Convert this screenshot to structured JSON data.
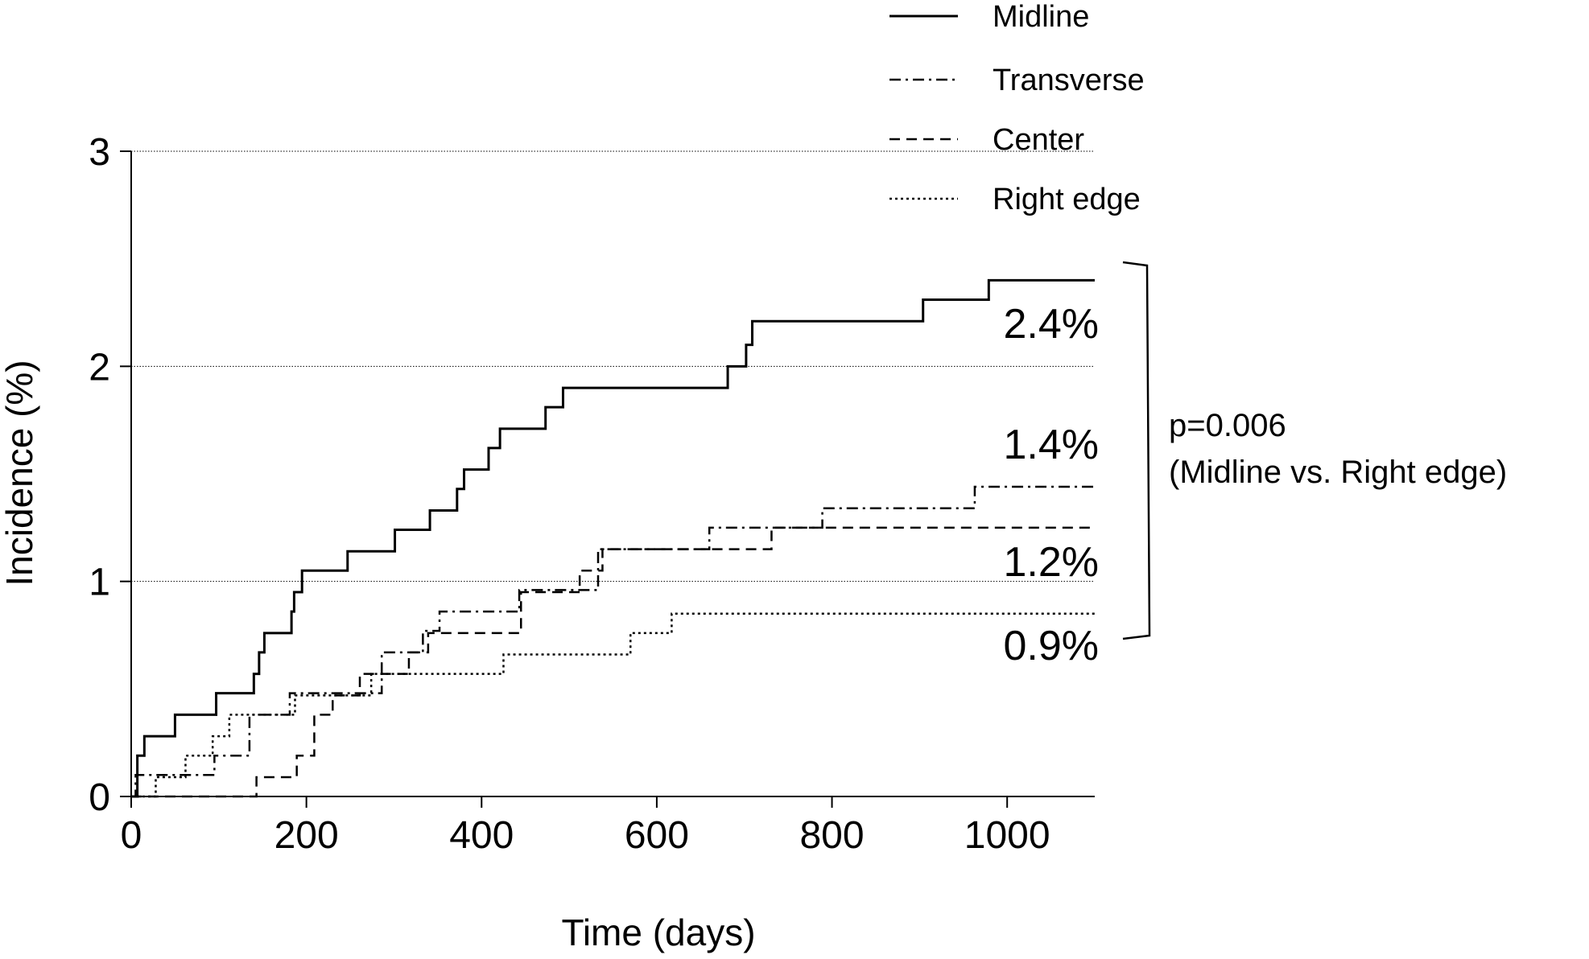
{
  "chart_data": {
    "type": "line",
    "step": true,
    "xlabel": "Time (days)",
    "ylabel": "Incidence (%)",
    "xlim": [
      0,
      1100
    ],
    "ylim": [
      0,
      3
    ],
    "xticks": [
      "0",
      "200",
      "400",
      "600",
      "800",
      "1000"
    ],
    "yticks": [
      "0",
      "1",
      "2",
      "3"
    ],
    "grid": "horizontal dotted at y = 1, 2, 3",
    "legend_position": "top-right",
    "series": [
      {
        "name": "Midline",
        "line_style": "solid",
        "end_label": "2.4%",
        "x": [
          0,
          7,
          15,
          50,
          97,
          140,
          146,
          152,
          168,
          183,
          186,
          195,
          247,
          301,
          341,
          372,
          380,
          408,
          421,
          473,
          493,
          681,
          702,
          709,
          713,
          904,
          979,
          1100
        ],
        "y": [
          0,
          0.19,
          0.28,
          0.38,
          0.48,
          0.57,
          0.67,
          0.76,
          0.76,
          0.86,
          0.95,
          1.05,
          1.14,
          1.24,
          1.33,
          1.43,
          1.52,
          1.62,
          1.71,
          1.81,
          1.9,
          2.0,
          2.1,
          2.21,
          2.21,
          2.31,
          2.4,
          2.4
        ]
      },
      {
        "name": "Transverse",
        "line_style": "dash-dot",
        "end_label": "1.4%",
        "x": [
          0,
          5,
          95,
          135,
          181,
          222,
          286,
          333,
          352,
          443,
          533,
          660,
          789,
          963,
          1100
        ],
        "y": [
          0,
          0.1,
          0.19,
          0.38,
          0.48,
          0.48,
          0.67,
          0.77,
          0.86,
          0.96,
          1.15,
          1.25,
          1.34,
          1.44,
          1.44
        ]
      },
      {
        "name": "Center",
        "line_style": "dashed",
        "end_label": "1.2%",
        "x": [
          0,
          143,
          189,
          209,
          230,
          261,
          317,
          339,
          445,
          512,
          538,
          731,
          1100
        ],
        "y": [
          0,
          0.09,
          0.19,
          0.38,
          0.47,
          0.57,
          0.67,
          0.76,
          0.95,
          1.05,
          1.15,
          1.25,
          1.25
        ]
      },
      {
        "name": "Right edge",
        "line_style": "dotted",
        "end_label": "0.9%",
        "x": [
          0,
          28,
          62,
          93,
          112,
          128,
          187,
          220,
          274,
          292,
          425,
          570,
          617,
          1100
        ],
        "y": [
          0,
          0.09,
          0.19,
          0.28,
          0.38,
          0.38,
          0.47,
          0.47,
          0.57,
          0.57,
          0.66,
          0.76,
          0.85,
          0.85
        ]
      }
    ],
    "annotation": {
      "lines": [
        "p=0.006",
        "(Midline vs. Right edge)"
      ]
    }
  }
}
